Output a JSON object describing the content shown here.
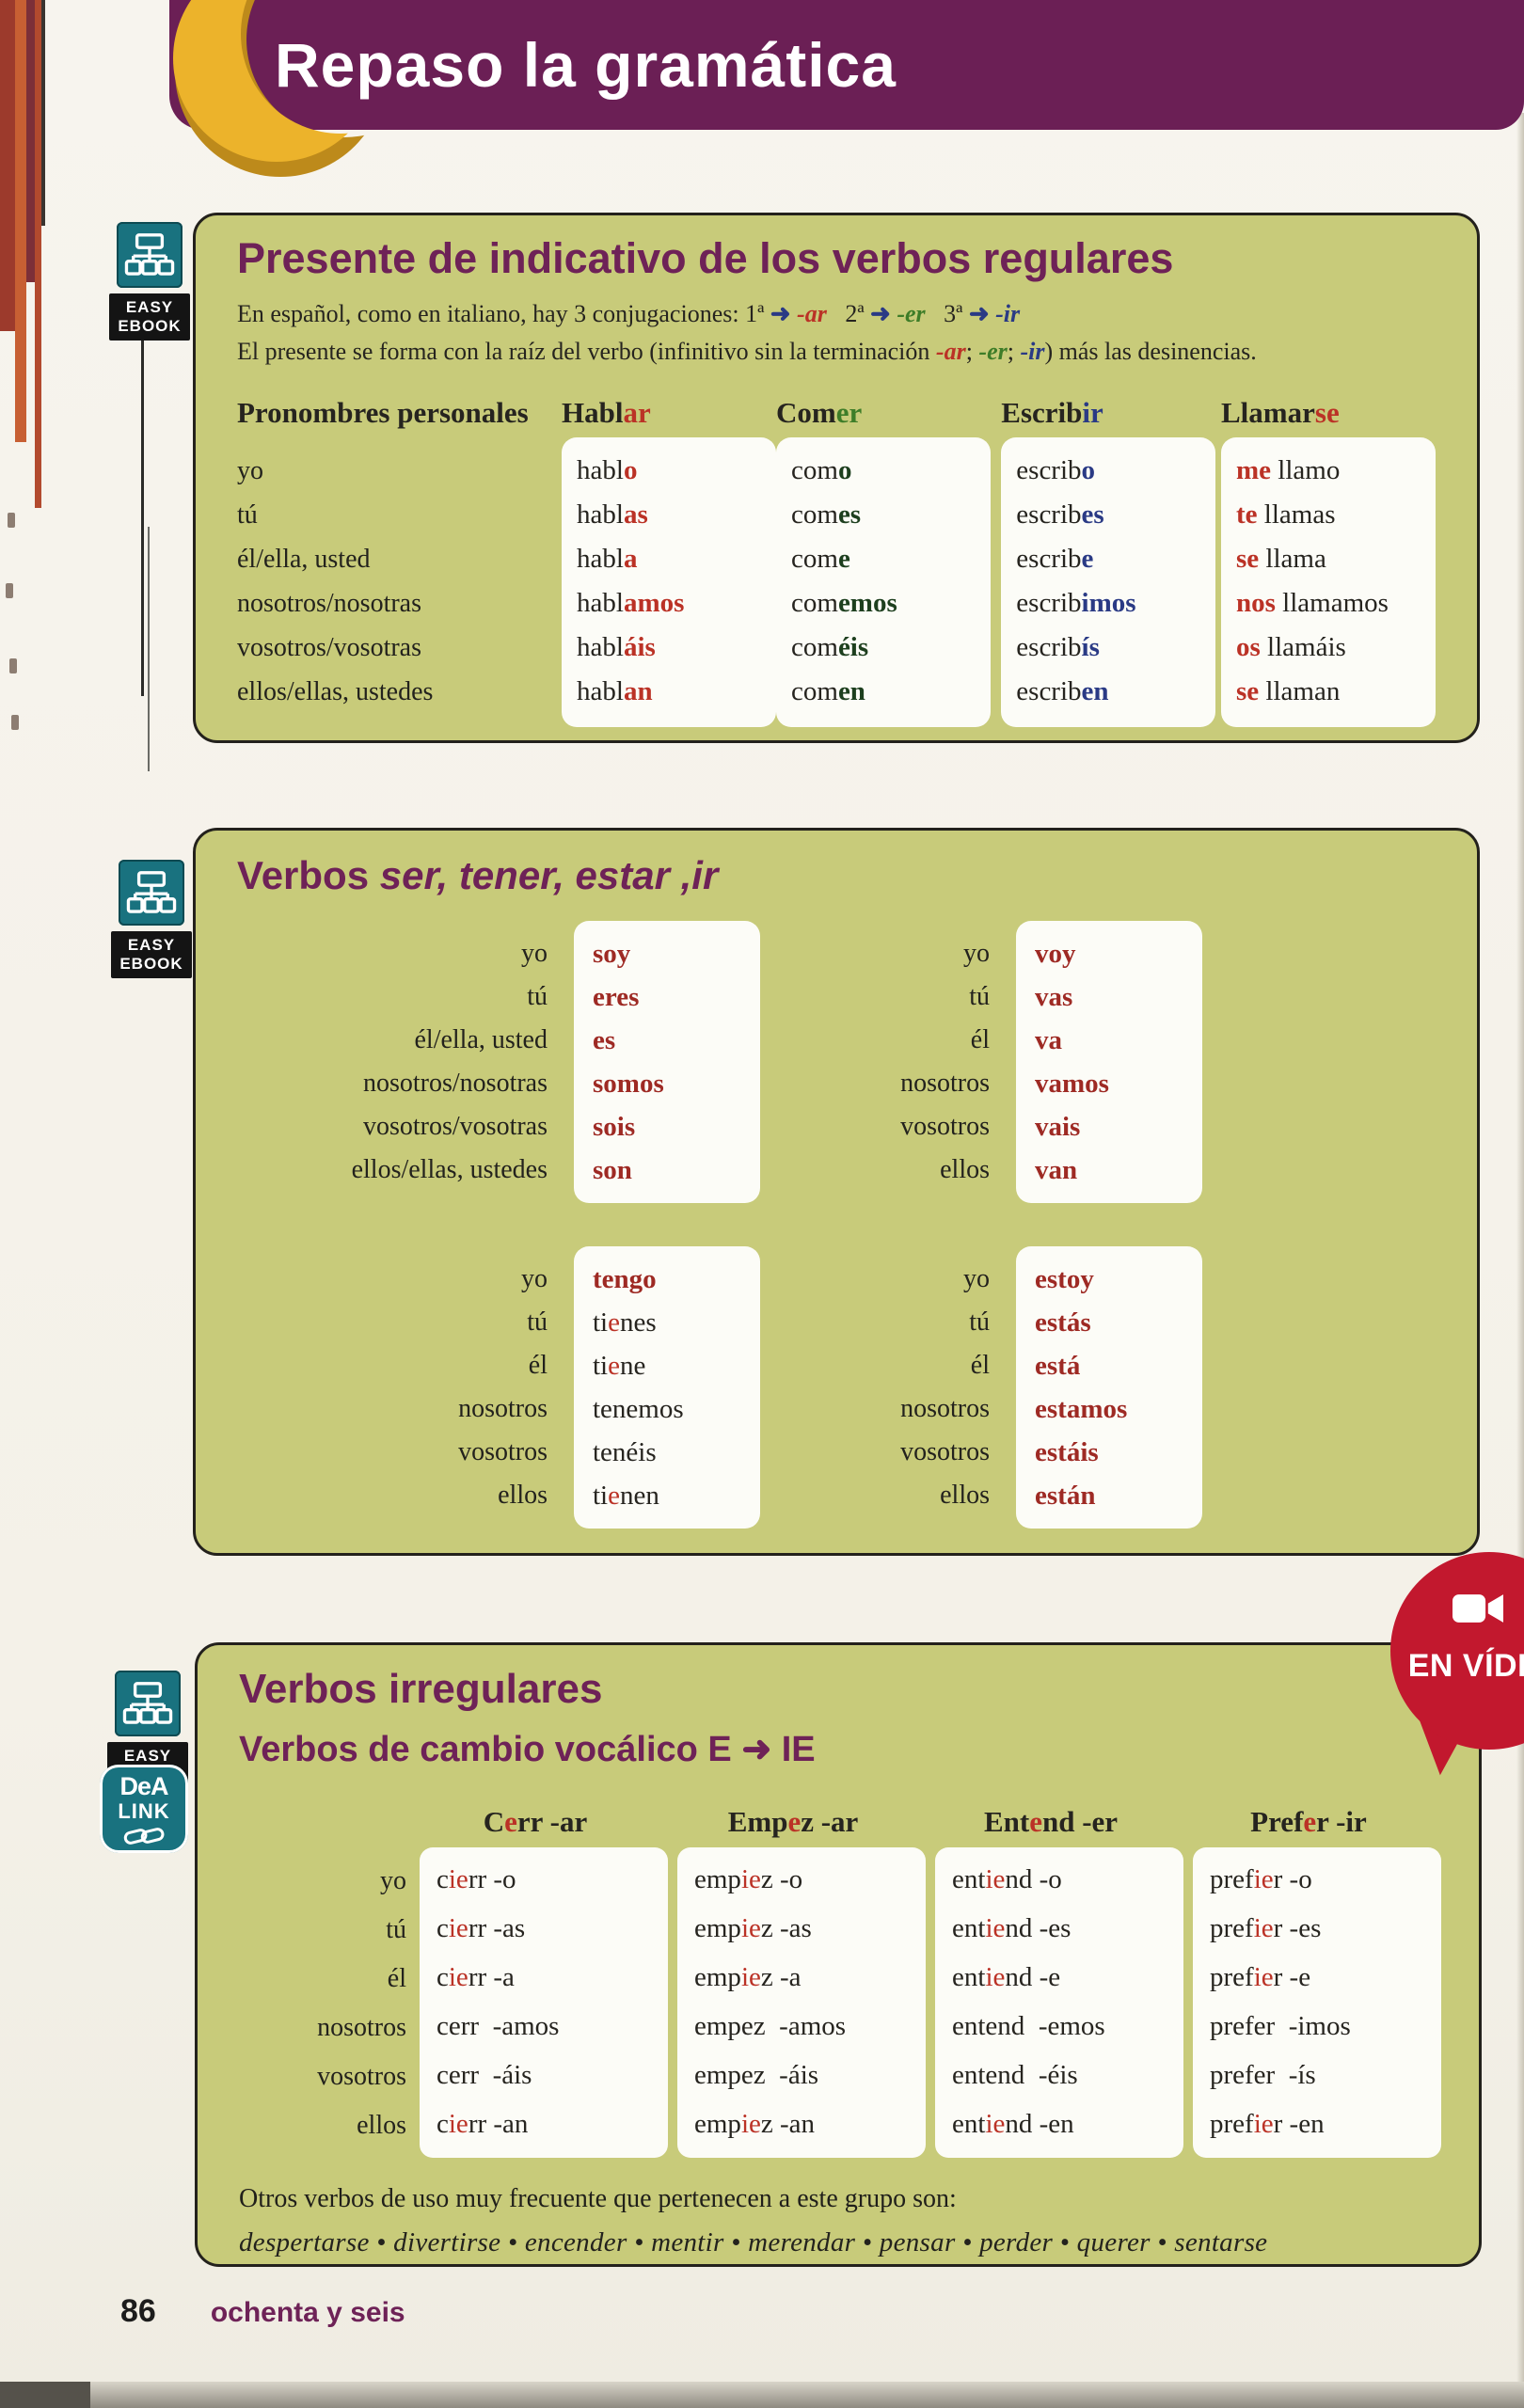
{
  "colors": {
    "k": "#26241f",
    "r": "#bb3226",
    "g": "#3e7d28",
    "g2": "#1d3f1e",
    "bl": "#2a3a85",
    "dr": "#9e2a24",
    "nav": "#2a3a85",
    "purple": "#6e2257",
    "banner": "#6b1f55",
    "gold": "#ecb32b",
    "gold_dark": "#bd8a1b",
    "box_bg": "#c8cb7a",
    "teal": "#19727f",
    "badge": "#c2182e"
  },
  "banner": {
    "title": "Repaso la gramática"
  },
  "icons": {
    "easy_line1": "EASY",
    "easy_line2": "EBOOK",
    "dea_line1": "DeA",
    "dea_line2": "LINK"
  },
  "badge": {
    "label": "EN VÍDEO"
  },
  "box1": {
    "title": "Presente de indicativo de los verbos regulares",
    "intro1": [
      [
        "En español, como en italiano, hay 3 conjugaciones: 1ª ",
        "k"
      ],
      [
        "➜",
        "nav",
        "b"
      ],
      [
        " ",
        "k"
      ],
      [
        "-ar",
        "r",
        "bi"
      ],
      [
        "   2ª ",
        "k"
      ],
      [
        "➜",
        "nav",
        "b"
      ],
      [
        " ",
        "k"
      ],
      [
        "-er",
        "g",
        "bi"
      ],
      [
        "   3ª ",
        "k"
      ],
      [
        "➜",
        "nav",
        "b"
      ],
      [
        " ",
        "k"
      ],
      [
        "-ir",
        "bl",
        "bi"
      ]
    ],
    "intro2": [
      [
        "El presente se forma con la raíz del verbo (infinitivo sin la terminación ",
        "k"
      ],
      [
        "-ar",
        "r",
        "bi"
      ],
      [
        "; ",
        "k"
      ],
      [
        "-er",
        "g",
        "bi"
      ],
      [
        "; ",
        "k"
      ],
      [
        "-ir",
        "bl",
        "bi"
      ],
      [
        ") más las desinencias.",
        "k"
      ]
    ],
    "header_pronouns": "Pronombres personales",
    "pronouns": [
      "yo",
      "tú",
      "él/ella, usted",
      "nosotros/nosotras",
      "vosotros/vosotras",
      "ellos/ellas, ustedes"
    ],
    "columns": [
      {
        "header": [
          [
            "Habl",
            "k"
          ],
          [
            "ar",
            "r"
          ]
        ],
        "cells": [
          [
            [
              "habl",
              "k"
            ],
            [
              "o",
              "r",
              "b"
            ]
          ],
          [
            [
              "habl",
              "k"
            ],
            [
              "as",
              "r",
              "b"
            ]
          ],
          [
            [
              "habl",
              "k"
            ],
            [
              "a",
              "r",
              "b"
            ]
          ],
          [
            [
              "habl",
              "k"
            ],
            [
              "amos",
              "r",
              "b"
            ]
          ],
          [
            [
              "habl",
              "k"
            ],
            [
              "áis",
              "r",
              "b"
            ]
          ],
          [
            [
              "habl",
              "k"
            ],
            [
              "an",
              "r",
              "b"
            ]
          ]
        ]
      },
      {
        "header": [
          [
            "Com",
            "k"
          ],
          [
            "er",
            "g"
          ]
        ],
        "cells": [
          [
            [
              "com",
              "k"
            ],
            [
              "o",
              "g2",
              "b"
            ]
          ],
          [
            [
              "com",
              "k"
            ],
            [
              "es",
              "g2",
              "b"
            ]
          ],
          [
            [
              "com",
              "k"
            ],
            [
              "e",
              "g2",
              "b"
            ]
          ],
          [
            [
              "com",
              "k"
            ],
            [
              "emos",
              "g2",
              "b"
            ]
          ],
          [
            [
              "com",
              "k"
            ],
            [
              "éis",
              "g2",
              "b"
            ]
          ],
          [
            [
              "com",
              "k"
            ],
            [
              "en",
              "g2",
              "b"
            ]
          ]
        ]
      },
      {
        "header": [
          [
            "Escrib",
            "k"
          ],
          [
            "ir",
            "bl"
          ]
        ],
        "cells": [
          [
            [
              "escrib",
              "k"
            ],
            [
              "o",
              "bl",
              "b"
            ]
          ],
          [
            [
              "escrib",
              "k"
            ],
            [
              "es",
              "bl",
              "b"
            ]
          ],
          [
            [
              "escrib",
              "k"
            ],
            [
              "e",
              "bl",
              "b"
            ]
          ],
          [
            [
              "escrib",
              "k"
            ],
            [
              "imos",
              "bl",
              "b"
            ]
          ],
          [
            [
              "escrib",
              "k"
            ],
            [
              "ís",
              "bl",
              "b"
            ]
          ],
          [
            [
              "escrib",
              "k"
            ],
            [
              "en",
              "bl",
              "b"
            ]
          ]
        ]
      },
      {
        "header": [
          [
            "Llamar",
            "k"
          ],
          [
            "se",
            "r"
          ]
        ],
        "cells": [
          [
            [
              "me ",
              "r",
              "b"
            ],
            [
              "llamo",
              "k"
            ]
          ],
          [
            [
              "te ",
              "r",
              "b"
            ],
            [
              "llamas",
              "k"
            ]
          ],
          [
            [
              "se ",
              "r",
              "b"
            ],
            [
              "llama",
              "k"
            ]
          ],
          [
            [
              "nos ",
              "r",
              "b"
            ],
            [
              "llamamos",
              "k"
            ]
          ],
          [
            [
              "os ",
              "r",
              "b"
            ],
            [
              "llamáis",
              "k"
            ]
          ],
          [
            [
              "se ",
              "r",
              "b"
            ],
            [
              "llaman",
              "k"
            ]
          ]
        ]
      }
    ]
  },
  "box2": {
    "title_plain": "Verbos ",
    "title_italic": "ser, tener, estar ,ir",
    "tables": [
      {
        "name": "ser",
        "pronouns": [
          "yo",
          "tú",
          "él/ella, usted",
          "nosotros/nosotras",
          "vosotros/vosotras",
          "ellos/ellas, ustedes"
        ],
        "forms": [
          [
            [
              "soy",
              "dr",
              "b"
            ]
          ],
          [
            [
              "eres",
              "dr",
              "b"
            ]
          ],
          [
            [
              "es",
              "dr",
              "b"
            ]
          ],
          [
            [
              "somos",
              "dr",
              "b"
            ]
          ],
          [
            [
              "sois",
              "dr",
              "b"
            ]
          ],
          [
            [
              "son",
              "dr",
              "b"
            ]
          ]
        ]
      },
      {
        "name": "ir",
        "pronouns": [
          "yo",
          "tú",
          "él",
          "nosotros",
          "vosotros",
          "ellos"
        ],
        "forms": [
          [
            [
              "voy",
              "dr",
              "b"
            ]
          ],
          [
            [
              "vas",
              "dr",
              "b"
            ]
          ],
          [
            [
              "va",
              "dr",
              "b"
            ]
          ],
          [
            [
              "vamos",
              "dr",
              "b"
            ]
          ],
          [
            [
              "vais",
              "dr",
              "b"
            ]
          ],
          [
            [
              "van",
              "dr",
              "b"
            ]
          ]
        ]
      },
      {
        "name": "tener",
        "pronouns": [
          "yo",
          "tú",
          "él",
          "nosotros",
          "vosotros",
          "ellos"
        ],
        "forms": [
          [
            [
              "tengo",
              "dr",
              "b"
            ]
          ],
          [
            [
              "ti",
              "k"
            ],
            [
              "e",
              "r"
            ],
            [
              "nes",
              "k"
            ]
          ],
          [
            [
              "ti",
              "k"
            ],
            [
              "e",
              "r"
            ],
            [
              "ne",
              "k"
            ]
          ],
          [
            [
              "tenemos",
              "k"
            ]
          ],
          [
            [
              "tenéis",
              "k"
            ]
          ],
          [
            [
              "ti",
              "k"
            ],
            [
              "e",
              "r"
            ],
            [
              "nen",
              "k"
            ]
          ]
        ]
      },
      {
        "name": "estar",
        "pronouns": [
          "yo",
          "tú",
          "él",
          "nosotros",
          "vosotros",
          "ellos"
        ],
        "forms": [
          [
            [
              "estoy",
              "dr",
              "b"
            ]
          ],
          [
            [
              "estás",
              "dr",
              "b"
            ]
          ],
          [
            [
              "está",
              "dr",
              "b"
            ]
          ],
          [
            [
              "estamos",
              "dr",
              "b"
            ]
          ],
          [
            [
              "estáis",
              "dr",
              "b"
            ]
          ],
          [
            [
              "están",
              "dr",
              "b"
            ]
          ]
        ]
      }
    ]
  },
  "box3": {
    "title": "Verbos irregulares",
    "subtitle": "Verbos de cambio vocálico E ➜ IE",
    "pronouns": [
      "yo",
      "tú",
      "él",
      "nosotros",
      "vosotros",
      "ellos"
    ],
    "columns": [
      {
        "header": [
          [
            "C",
            "k"
          ],
          [
            "e",
            "r"
          ],
          [
            "rr",
            "k"
          ],
          [
            " -ar",
            "k"
          ]
        ],
        "cells": [
          [
            [
              "c",
              "k"
            ],
            [
              "ie",
              "r"
            ],
            [
              "rr",
              "k"
            ],
            [
              " -o",
              "k"
            ]
          ],
          [
            [
              "c",
              "k"
            ],
            [
              "ie",
              "r"
            ],
            [
              "rr",
              "k"
            ],
            [
              " -as",
              "k"
            ]
          ],
          [
            [
              "c",
              "k"
            ],
            [
              "ie",
              "r"
            ],
            [
              "rr",
              "k"
            ],
            [
              " -a",
              "k"
            ]
          ],
          [
            [
              "cerr",
              "k"
            ],
            [
              "  -amos",
              "k"
            ]
          ],
          [
            [
              "cerr",
              "k"
            ],
            [
              "  -áis",
              "k"
            ]
          ],
          [
            [
              "c",
              "k"
            ],
            [
              "ie",
              "r"
            ],
            [
              "rr",
              "k"
            ],
            [
              " -an",
              "k"
            ]
          ]
        ]
      },
      {
        "header": [
          [
            "Emp",
            "k"
          ],
          [
            "e",
            "r"
          ],
          [
            "z",
            "k"
          ],
          [
            " -ar",
            "k"
          ]
        ],
        "cells": [
          [
            [
              "emp",
              "k"
            ],
            [
              "ie",
              "r"
            ],
            [
              "z",
              "k"
            ],
            [
              " -o",
              "k"
            ]
          ],
          [
            [
              "emp",
              "k"
            ],
            [
              "ie",
              "r"
            ],
            [
              "z",
              "k"
            ],
            [
              " -as",
              "k"
            ]
          ],
          [
            [
              "emp",
              "k"
            ],
            [
              "ie",
              "r"
            ],
            [
              "z",
              "k"
            ],
            [
              " -a",
              "k"
            ]
          ],
          [
            [
              "empez",
              "k"
            ],
            [
              "  -amos",
              "k"
            ]
          ],
          [
            [
              "empez",
              "k"
            ],
            [
              "  -áis",
              "k"
            ]
          ],
          [
            [
              "emp",
              "k"
            ],
            [
              "ie",
              "r"
            ],
            [
              "z",
              "k"
            ],
            [
              " -an",
              "k"
            ]
          ]
        ]
      },
      {
        "header": [
          [
            "Ent",
            "k"
          ],
          [
            "e",
            "r"
          ],
          [
            "nd",
            "k"
          ],
          [
            " -er",
            "k"
          ]
        ],
        "cells": [
          [
            [
              "ent",
              "k"
            ],
            [
              "ie",
              "r"
            ],
            [
              "nd",
              "k"
            ],
            [
              " -o",
              "k"
            ]
          ],
          [
            [
              "ent",
              "k"
            ],
            [
              "ie",
              "r"
            ],
            [
              "nd",
              "k"
            ],
            [
              " -es",
              "k"
            ]
          ],
          [
            [
              "ent",
              "k"
            ],
            [
              "ie",
              "r"
            ],
            [
              "nd",
              "k"
            ],
            [
              " -e",
              "k"
            ]
          ],
          [
            [
              "entend",
              "k"
            ],
            [
              "  -emos",
              "k"
            ]
          ],
          [
            [
              "entend",
              "k"
            ],
            [
              "  -éis",
              "k"
            ]
          ],
          [
            [
              "ent",
              "k"
            ],
            [
              "ie",
              "r"
            ],
            [
              "nd",
              "k"
            ],
            [
              " -en",
              "k"
            ]
          ]
        ]
      },
      {
        "header": [
          [
            "Pref",
            "k"
          ],
          [
            "e",
            "r"
          ],
          [
            "r",
            "k"
          ],
          [
            " -ir",
            "k"
          ]
        ],
        "cells": [
          [
            [
              "pref",
              "k"
            ],
            [
              "ie",
              "r"
            ],
            [
              "r",
              "k"
            ],
            [
              " -o",
              "k"
            ]
          ],
          [
            [
              "pref",
              "k"
            ],
            [
              "ie",
              "r"
            ],
            [
              "r",
              "k"
            ],
            [
              " -es",
              "k"
            ]
          ],
          [
            [
              "pref",
              "k"
            ],
            [
              "ie",
              "r"
            ],
            [
              "r",
              "k"
            ],
            [
              " -e",
              "k"
            ]
          ],
          [
            [
              "prefer",
              "k"
            ],
            [
              "  -imos",
              "k"
            ]
          ],
          [
            [
              "prefer",
              "k"
            ],
            [
              "  -ís",
              "k"
            ]
          ],
          [
            [
              "pref",
              "k"
            ],
            [
              "ie",
              "r"
            ],
            [
              "r",
              "k"
            ],
            [
              " -en",
              "k"
            ]
          ]
        ]
      }
    ],
    "note": "Otros verbos de uso muy frecuente que pertenecen a este grupo son:",
    "verb_list": "despertarse • divertirse • encender • mentir • merendar • pensar • perder • querer • sentarse"
  },
  "footer": {
    "page_number": "86",
    "page_words": "ochenta y seis"
  }
}
